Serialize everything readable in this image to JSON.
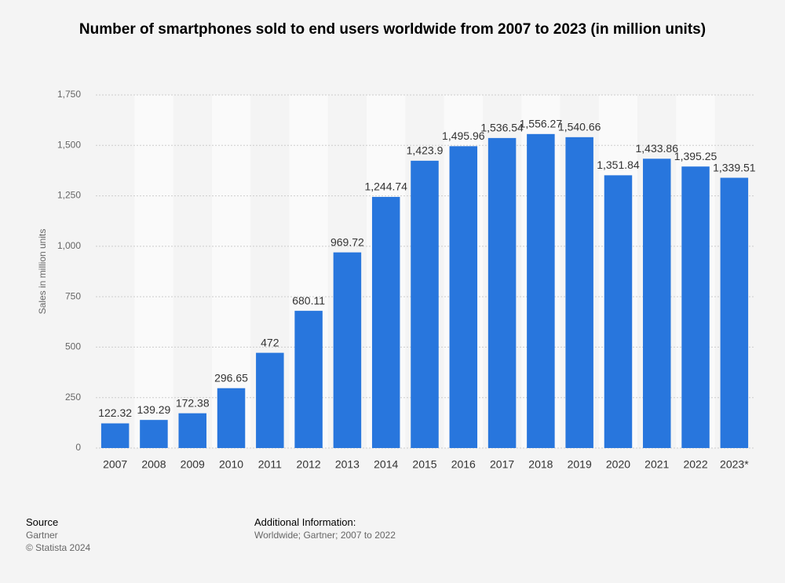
{
  "chart_data": {
    "type": "bar",
    "title": "Number of smartphones sold to end users worldwide from 2007 to 2023 (in million units)",
    "y_label": "Sales in million units",
    "categories": [
      "2007",
      "2008",
      "2009",
      "2010",
      "2011",
      "2012",
      "2013",
      "2014",
      "2015",
      "2016",
      "2017",
      "2018",
      "2019",
      "2020",
      "2021",
      "2022",
      "2023*"
    ],
    "values": [
      122.32,
      139.29,
      172.38,
      296.65,
      472,
      680.11,
      969.72,
      1244.74,
      1423.9,
      1495.96,
      1536.54,
      1556.27,
      1540.66,
      1351.84,
      1433.86,
      1395.25,
      1339.51
    ],
    "value_labels": [
      "122.32",
      "139.29",
      "172.38",
      "296.65",
      "472",
      "680.11",
      "969.72",
      "1,244.74",
      "1,423.9",
      "1,495.96",
      "1,536.54",
      "1,556.27",
      "1,540.66",
      "1,351.84",
      "1,433.86",
      "1,395.25",
      "1,339.51"
    ],
    "color": "#2876dd",
    "ylim": [
      0,
      1750
    ],
    "yticks": [
      0,
      250,
      500,
      750,
      {
        "value": 1000,
        "label": "1,000"
      },
      {
        "value": 1250,
        "label": "1,250"
      },
      {
        "value": 1500,
        "label": "1,500"
      },
      {
        "value": 1750,
        "label": "1,750"
      }
    ],
    "grid": true
  },
  "footer": {
    "source_title": "Source",
    "source": "Gartner",
    "copyright": "© Statista 2024",
    "info_title": "Additional Information:",
    "info": "Worldwide; Gartner; 2007 to 2022"
  }
}
